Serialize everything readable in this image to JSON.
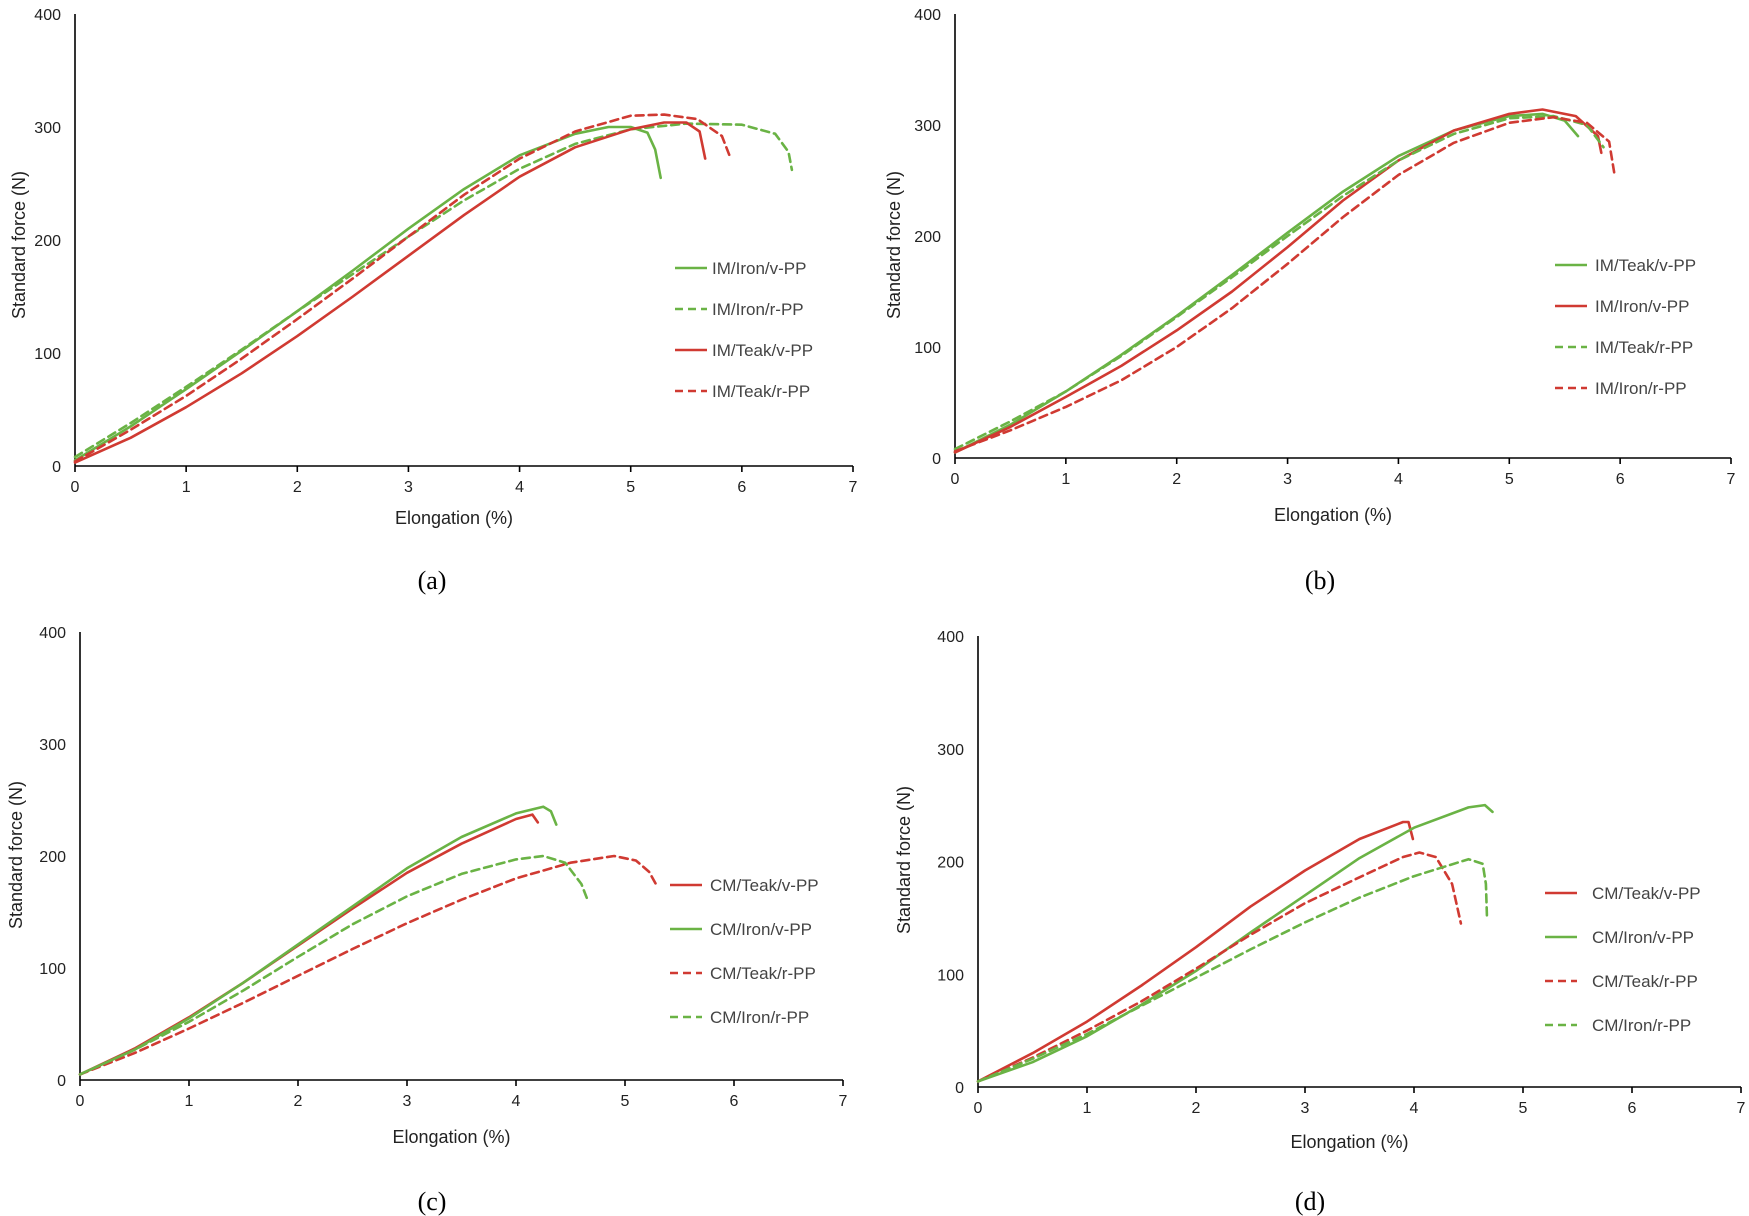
{
  "colors": {
    "green": "#6ab345",
    "red": "#d03a32"
  },
  "chart_data": [
    {
      "type": "line",
      "caption": "(a)",
      "xlabel": "Elongation (%)",
      "ylabel": "Standard force (N)",
      "xlim": [
        0,
        7
      ],
      "ylim": [
        0,
        400
      ],
      "xticks": [
        0,
        1,
        2,
        3,
        4,
        5,
        6,
        7
      ],
      "yticks": [
        0,
        100,
        200,
        300,
        400
      ],
      "legend_position": "right",
      "series": [
        {
          "name": "IM/Iron/v-PP",
          "color": "green",
          "dash": false,
          "points": [
            [
              0,
              5
            ],
            [
              0.5,
              35
            ],
            [
              1,
              68
            ],
            [
              1.5,
              102
            ],
            [
              2,
              137
            ],
            [
              2.5,
              173
            ],
            [
              3,
              210
            ],
            [
              3.5,
              245
            ],
            [
              4,
              275
            ],
            [
              4.5,
              294
            ],
            [
              4.8,
              300
            ],
            [
              5,
              300
            ],
            [
              5.15,
              295
            ],
            [
              5.22,
              280
            ],
            [
              5.27,
              255
            ]
          ]
        },
        {
          "name": "IM/Iron/r-PP",
          "color": "green",
          "dash": true,
          "points": [
            [
              0,
              8
            ],
            [
              0.5,
              38
            ],
            [
              1,
              70
            ],
            [
              1.5,
              103
            ],
            [
              2,
              137
            ],
            [
              2.5,
              170
            ],
            [
              3,
              203
            ],
            [
              3.5,
              235
            ],
            [
              4,
              263
            ],
            [
              4.5,
              285
            ],
            [
              5,
              298
            ],
            [
              5.5,
              303
            ],
            [
              6,
              302
            ],
            [
              6.3,
              294
            ],
            [
              6.42,
              278
            ],
            [
              6.45,
              262
            ]
          ]
        },
        {
          "name": "IM/Teak/v-PP",
          "color": "red",
          "dash": false,
          "points": [
            [
              0,
              3
            ],
            [
              0.5,
              25
            ],
            [
              1,
              52
            ],
            [
              1.5,
              82
            ],
            [
              2,
              115
            ],
            [
              2.5,
              150
            ],
            [
              3,
              186
            ],
            [
              3.5,
              222
            ],
            [
              4,
              256
            ],
            [
              4.5,
              282
            ],
            [
              5,
              298
            ],
            [
              5.3,
              304
            ],
            [
              5.5,
              304
            ],
            [
              5.62,
              296
            ],
            [
              5.67,
              272
            ]
          ]
        },
        {
          "name": "IM/Teak/r-PP",
          "color": "red",
          "dash": true,
          "points": [
            [
              0,
              4
            ],
            [
              0.5,
              32
            ],
            [
              1,
              62
            ],
            [
              1.5,
              95
            ],
            [
              2,
              130
            ],
            [
              2.5,
              166
            ],
            [
              3,
              203
            ],
            [
              3.5,
              240
            ],
            [
              4,
              272
            ],
            [
              4.5,
              296
            ],
            [
              5,
              310
            ],
            [
              5.3,
              311
            ],
            [
              5.6,
              307
            ],
            [
              5.82,
              292
            ],
            [
              5.9,
              272
            ]
          ]
        }
      ]
    },
    {
      "type": "line",
      "caption": "(b)",
      "xlabel": "Elongation (%)",
      "ylabel": "Standard force (N)",
      "xlim": [
        0,
        7
      ],
      "ylim": [
        0,
        400
      ],
      "xticks": [
        0,
        1,
        2,
        3,
        4,
        5,
        6,
        7
      ],
      "yticks": [
        0,
        100,
        200,
        300,
        400
      ],
      "legend_position": "right",
      "series": [
        {
          "name": "IM/Teak/v-PP",
          "color": "green",
          "dash": false,
          "points": [
            [
              0,
              5
            ],
            [
              0.5,
              30
            ],
            [
              1,
              60
            ],
            [
              1.5,
              93
            ],
            [
              2,
              128
            ],
            [
              2.5,
              165
            ],
            [
              3,
              203
            ],
            [
              3.5,
              240
            ],
            [
              4,
              272
            ],
            [
              4.5,
              295
            ],
            [
              5,
              308
            ],
            [
              5.3,
              310
            ],
            [
              5.5,
              304
            ],
            [
              5.62,
              290
            ]
          ]
        },
        {
          "name": "IM/Iron/v-PP",
          "color": "red",
          "dash": false,
          "points": [
            [
              0,
              5
            ],
            [
              0.5,
              28
            ],
            [
              1,
              55
            ],
            [
              1.5,
              83
            ],
            [
              2,
              115
            ],
            [
              2.5,
              150
            ],
            [
              3,
              190
            ],
            [
              3.5,
              232
            ],
            [
              4,
              268
            ],
            [
              4.5,
              295
            ],
            [
              5,
              310
            ],
            [
              5.3,
              314
            ],
            [
              5.6,
              308
            ],
            [
              5.8,
              290
            ],
            [
              5.83,
              275
            ]
          ]
        },
        {
          "name": "IM/Teak/r-PP",
          "color": "green",
          "dash": true,
          "points": [
            [
              0,
              8
            ],
            [
              0.5,
              33
            ],
            [
              1,
              60
            ],
            [
              1.5,
              92
            ],
            [
              2,
              127
            ],
            [
              2.5,
              163
            ],
            [
              3,
              200
            ],
            [
              3.5,
              236
            ],
            [
              4,
              268
            ],
            [
              4.5,
              292
            ],
            [
              5,
              306
            ],
            [
              5.4,
              308
            ],
            [
              5.7,
              300
            ],
            [
              5.85,
              280
            ]
          ]
        },
        {
          "name": "IM/Iron/r-PP",
          "color": "red",
          "dash": true,
          "points": [
            [
              0,
              6
            ],
            [
              0.5,
              25
            ],
            [
              1,
              46
            ],
            [
              1.5,
              70
            ],
            [
              2,
              100
            ],
            [
              2.5,
              135
            ],
            [
              3,
              175
            ],
            [
              3.5,
              217
            ],
            [
              4,
              255
            ],
            [
              4.5,
              284
            ],
            [
              5,
              302
            ],
            [
              5.4,
              307
            ],
            [
              5.7,
              302
            ],
            [
              5.9,
              285
            ],
            [
              5.95,
              255
            ]
          ]
        }
      ]
    },
    {
      "type": "line",
      "caption": "(c)",
      "xlabel": "Elongation (%)",
      "ylabel": "Standard force (N)",
      "xlim": [
        0,
        7
      ],
      "ylim": [
        0,
        400
      ],
      "xticks": [
        0,
        1,
        2,
        3,
        4,
        5,
        6,
        7
      ],
      "yticks": [
        0,
        100,
        200,
        300,
        400
      ],
      "legend_position": "right",
      "series": [
        {
          "name": "CM/Teak/v-PP",
          "color": "red",
          "dash": false,
          "points": [
            [
              0,
              5
            ],
            [
              0.5,
              28
            ],
            [
              1,
              56
            ],
            [
              1.5,
              87
            ],
            [
              2,
              120
            ],
            [
              2.5,
              153
            ],
            [
              3,
              185
            ],
            [
              3.5,
              211
            ],
            [
              4,
              233
            ],
            [
              4.15,
              237
            ],
            [
              4.2,
              230
            ]
          ]
        },
        {
          "name": "CM/Iron/v-PP",
          "color": "green",
          "dash": false,
          "points": [
            [
              0,
              5
            ],
            [
              0.5,
              27
            ],
            [
              1,
              55
            ],
            [
              1.5,
              87
            ],
            [
              2,
              121
            ],
            [
              2.5,
              155
            ],
            [
              3,
              189
            ],
            [
              3.5,
              217
            ],
            [
              4,
              238
            ],
            [
              4.25,
              244
            ],
            [
              4.32,
              240
            ],
            [
              4.37,
              228
            ]
          ]
        },
        {
          "name": "CM/Teak/r-PP",
          "color": "red",
          "dash": true,
          "points": [
            [
              0,
              5
            ],
            [
              0.5,
              24
            ],
            [
              1,
              46
            ],
            [
              1.5,
              69
            ],
            [
              2,
              93
            ],
            [
              2.5,
              117
            ],
            [
              3,
              140
            ],
            [
              3.5,
              161
            ],
            [
              4,
              180
            ],
            [
              4.5,
              194
            ],
            [
              4.9,
              200
            ],
            [
              5.1,
              196
            ],
            [
              5.22,
              186
            ],
            [
              5.3,
              172
            ]
          ]
        },
        {
          "name": "CM/Iron/r-PP",
          "color": "green",
          "dash": true,
          "points": [
            [
              0,
              5
            ],
            [
              0.5,
              27
            ],
            [
              1,
              52
            ],
            [
              1.5,
              80
            ],
            [
              2,
              110
            ],
            [
              2.5,
              139
            ],
            [
              3,
              164
            ],
            [
              3.5,
              184
            ],
            [
              4,
              197
            ],
            [
              4.25,
              200
            ],
            [
              4.45,
              194
            ],
            [
              4.6,
              175
            ],
            [
              4.66,
              160
            ]
          ]
        }
      ]
    },
    {
      "type": "line",
      "caption": "(d)",
      "xlabel": "Elongation (%)",
      "ylabel": "Standard force (N)",
      "xlim": [
        0,
        7
      ],
      "ylim": [
        0,
        400
      ],
      "xticks": [
        0,
        1,
        2,
        3,
        4,
        5,
        6,
        7
      ],
      "yticks": [
        0,
        100,
        200,
        300,
        400
      ],
      "legend_position": "right",
      "series": [
        {
          "name": "CM/Teak/v-PP",
          "color": "red",
          "dash": false,
          "points": [
            [
              0,
              5
            ],
            [
              0.5,
              30
            ],
            [
              1,
              58
            ],
            [
              1.5,
              90
            ],
            [
              2,
              124
            ],
            [
              2.5,
              160
            ],
            [
              3,
              192
            ],
            [
              3.5,
              220
            ],
            [
              3.9,
              235
            ],
            [
              3.95,
              235
            ],
            [
              3.99,
              220
            ]
          ]
        },
        {
          "name": "CM/Iron/v-PP",
          "color": "green",
          "dash": false,
          "points": [
            [
              0,
              5
            ],
            [
              0.5,
              22
            ],
            [
              1,
              45
            ],
            [
              1.5,
              73
            ],
            [
              2,
              103
            ],
            [
              2.5,
              137
            ],
            [
              3,
              170
            ],
            [
              3.5,
              203
            ],
            [
              4,
              230
            ],
            [
              4.5,
              248
            ],
            [
              4.65,
              250
            ],
            [
              4.72,
              244
            ]
          ]
        },
        {
          "name": "CM/Teak/r-PP",
          "color": "red",
          "dash": true,
          "points": [
            [
              0,
              5
            ],
            [
              0.5,
              26
            ],
            [
              1,
              50
            ],
            [
              1.5,
              76
            ],
            [
              2,
              105
            ],
            [
              2.5,
              135
            ],
            [
              3,
              163
            ],
            [
              3.5,
              186
            ],
            [
              3.9,
              204
            ],
            [
              4.05,
              208
            ],
            [
              4.2,
              204
            ],
            [
              4.35,
              180
            ],
            [
              4.43,
              145
            ]
          ]
        },
        {
          "name": "CM/Iron/r-PP",
          "color": "green",
          "dash": true,
          "points": [
            [
              0,
              5
            ],
            [
              0.5,
              25
            ],
            [
              1,
              47
            ],
            [
              1.5,
              72
            ],
            [
              2,
              97
            ],
            [
              2.5,
              122
            ],
            [
              3,
              146
            ],
            [
              3.5,
              168
            ],
            [
              4,
              187
            ],
            [
              4.3,
              196
            ],
            [
              4.5,
              202
            ],
            [
              4.63,
              198
            ],
            [
              4.66,
              180
            ],
            [
              4.67,
              150
            ]
          ]
        }
      ]
    }
  ]
}
